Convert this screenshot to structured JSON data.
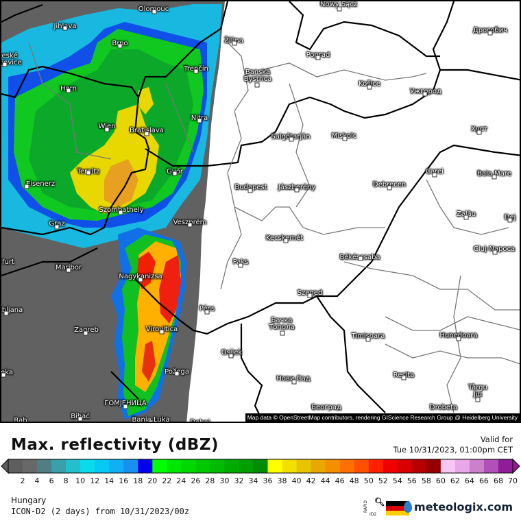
{
  "map": {
    "attribution": "Map data © OpenStreetMap contributors, rendering GIScience Research Group @ Heidelberg University",
    "cities": [
      {
        "name": "Olomouc"
      },
      {
        "name": "Jihlava"
      },
      {
        "name": "eské\nějovice"
      },
      {
        "name": "Brno"
      },
      {
        "name": "Trenčín"
      },
      {
        "name": "Horn"
      },
      {
        "name": "Wien"
      },
      {
        "name": "Bratislava"
      },
      {
        "name": "Nitra"
      },
      {
        "name": "Ternitz"
      },
      {
        "name": "Győr"
      },
      {
        "name": "Eisenerz"
      },
      {
        "name": "Szombathely"
      },
      {
        "name": "Graz"
      },
      {
        "name": "Veszprém"
      },
      {
        "name": "Maribor"
      },
      {
        "name": "Nagykanizsa"
      },
      {
        "name": "bljana"
      },
      {
        "name": "Pécs"
      },
      {
        "name": "Zagreb"
      },
      {
        "name": "Virovitica"
      },
      {
        "name": "eka"
      },
      {
        "name": "Požega"
      },
      {
        "name": "ГОМЈЕНИЦА"
      },
      {
        "name": "Bihać"
      },
      {
        "name": "Rab"
      },
      {
        "name": "Banja Luka"
      },
      {
        "name": "Doboj"
      },
      {
        "name": "Žilina"
      },
      {
        "name": "Poprad"
      },
      {
        "name": "Banská\nBystrica"
      },
      {
        "name": "Košice"
      },
      {
        "name": "Ужгород"
      },
      {
        "name": "Дрогобич"
      },
      {
        "name": "Nowy Sącz"
      },
      {
        "name": "Salgótarján"
      },
      {
        "name": "Miskolc"
      },
      {
        "name": "Хуст"
      },
      {
        "name": "Budapest"
      },
      {
        "name": "Jászberény"
      },
      {
        "name": "Debrecen"
      },
      {
        "name": "Carei"
      },
      {
        "name": "Baia Mare"
      },
      {
        "name": "Zalău"
      },
      {
        "name": "Dej"
      },
      {
        "name": "Cluj-Napoca"
      },
      {
        "name": "Kecskemét"
      },
      {
        "name": "Paks"
      },
      {
        "name": "Békéscsaba"
      },
      {
        "name": "Szeged"
      },
      {
        "name": "Бачка\nТопола"
      },
      {
        "name": "Timișoara"
      },
      {
        "name": "Hunedoara"
      },
      {
        "name": "Osijek"
      },
      {
        "name": "Нови Сад"
      },
      {
        "name": "Reșita"
      },
      {
        "name": "Târgu\nJiu"
      },
      {
        "name": "Београд"
      },
      {
        "name": "Drobeta"
      },
      {
        "name": "furt"
      }
    ]
  },
  "footer": {
    "title": "Max. reflectivity (dBZ)",
    "valid_label": "Valid for",
    "valid_time": "Tue 10/31/2023, 01:00pm CET",
    "region": "Hungary",
    "model": "ICON-D2 (2 days) from 10/31/2023/00z",
    "rapid_label": "RAPID",
    "id2_label": "ID2",
    "brand": "meteologix.com"
  },
  "legend": {
    "unit": "dBZ",
    "range": [
      0,
      70
    ],
    "ticks": [
      2,
      4,
      6,
      8,
      10,
      12,
      14,
      16,
      18,
      20,
      22,
      24,
      26,
      28,
      30,
      32,
      34,
      36,
      38,
      40,
      42,
      44,
      46,
      48,
      50,
      52,
      54,
      56,
      58,
      60,
      62,
      64,
      66,
      68,
      70
    ],
    "colors": [
      "#5e5e5e",
      "#686868",
      "#4f7f84",
      "#38a0aa",
      "#22c0cc",
      "#08dcec",
      "#08c8f4",
      "#10b0f4",
      "#1890f0",
      "#0000f0",
      "#00ff00",
      "#00e800",
      "#00d800",
      "#00c800",
      "#00bb00",
      "#00ab00",
      "#009f00",
      "#008c00",
      "#ffff00",
      "#f2e000",
      "#e8c400",
      "#e8a800",
      "#f49000",
      "#ff7000",
      "#ff5000",
      "#ff2000",
      "#f00000",
      "#d80000",
      "#b80000",
      "#980000",
      "#f8c8f4",
      "#e8a8e8",
      "#cc80cc",
      "#b050b8",
      "#901c98"
    ]
  }
}
